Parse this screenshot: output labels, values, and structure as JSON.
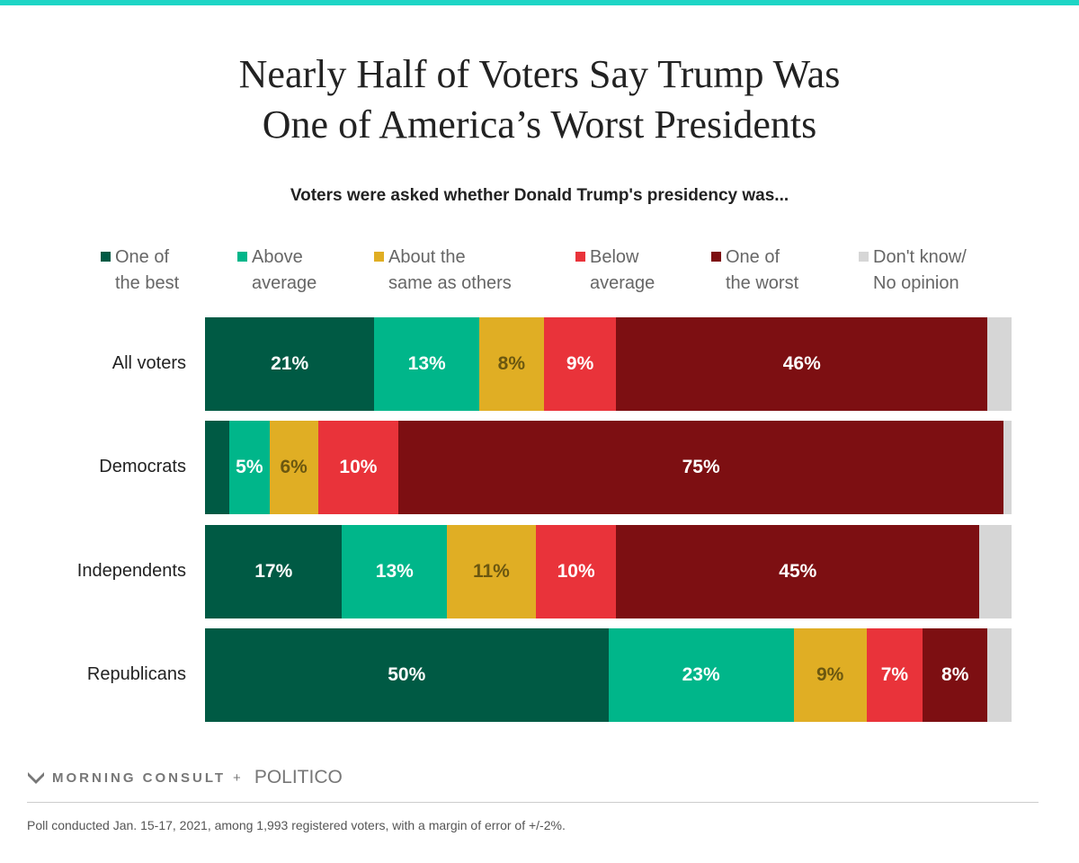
{
  "chart_data": {
    "type": "bar",
    "orientation": "horizontal",
    "stacked": true,
    "title": "Nearly Half of Voters Say Trump Was One of America’s Worst Presidents",
    "subtitle": "Voters were asked whether Donald Trump's presidency was...",
    "legend_position": "top",
    "categories": [
      "All voters",
      "Democrats",
      "Independents",
      "Republicans"
    ],
    "series": [
      {
        "name": "One of the best",
        "color": "#005a44",
        "label_color": "#ffffff",
        "values": [
          21,
          3,
          17,
          50
        ],
        "labels": [
          "21%",
          "",
          "17%",
          "50%"
        ]
      },
      {
        "name": "Above average",
        "color": "#00b68a",
        "label_color": "#ffffff",
        "values": [
          13,
          5,
          13,
          23
        ],
        "labels": [
          "13%",
          "5%",
          "13%",
          "23%"
        ]
      },
      {
        "name": "About the same as others",
        "color": "#e0ae24",
        "label_color": "#6b5710",
        "values": [
          8,
          6,
          11,
          9
        ],
        "labels": [
          "8%",
          "6%",
          "11%",
          "9%"
        ]
      },
      {
        "name": "Below average",
        "color": "#e9333a",
        "label_color": "#ffffff",
        "values": [
          9,
          10,
          10,
          7
        ],
        "labels": [
          "9%",
          "10%",
          "10%",
          "7%"
        ]
      },
      {
        "name": "One of the worst",
        "color": "#7d0f12",
        "label_color": "#ffffff",
        "values": [
          46,
          75,
          45,
          8
        ],
        "labels": [
          "46%",
          "75%",
          "45%",
          "8%"
        ]
      },
      {
        "name": "Don't know/ No opinion",
        "color": "#d6d6d6",
        "label_color": "#ffffff",
        "values": [
          3,
          1,
          4,
          3
        ],
        "labels": [
          "",
          "",
          "",
          ""
        ]
      }
    ],
    "legend_lines": [
      [
        "One of",
        "the best"
      ],
      [
        "Above",
        "average"
      ],
      [
        "About the",
        "same as others"
      ],
      [
        "Below",
        "average"
      ],
      [
        "One of",
        "the worst"
      ],
      [
        "Don't know/",
        "No opinion"
      ]
    ],
    "xlim": [
      0,
      100
    ]
  },
  "branding": {
    "morning_consult": "MORNING CONSULT",
    "plus": "+",
    "politico": "POLITICO"
  },
  "footnote": "Poll conducted Jan. 15-17, 2021, among 1,993 registered voters, with a margin of error of +/-2%."
}
